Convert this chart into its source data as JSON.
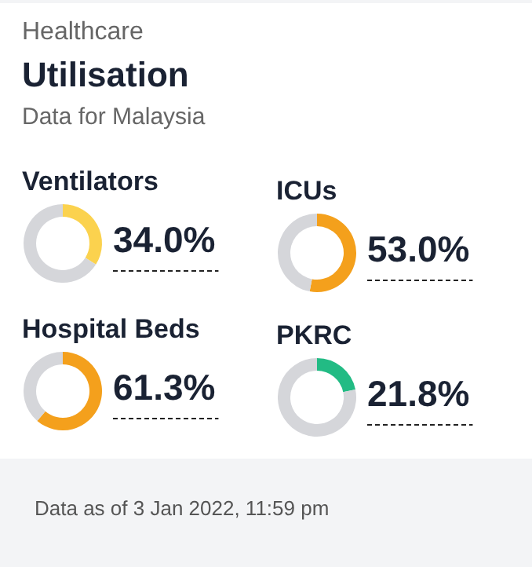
{
  "chart_data": [
    {
      "type": "other",
      "title": "Utilisation",
      "annotations": [
        "Healthcare",
        "Data for Malaysia",
        "Data as of 3 Jan 2022, 11:59 pm"
      ]
    },
    {
      "type": "donut",
      "title": "Ventilators",
      "categories": [
        null,
        null
      ],
      "values": [
        34.0,
        66.0
      ],
      "colors": [
        "#fbd24e",
        "#d5d6da"
      ],
      "value_labels": [
        "34.0%",
        null
      ]
    },
    {
      "type": "donut",
      "title": "ICUs",
      "categories": [
        null,
        null
      ],
      "values": [
        53.0,
        47.0
      ],
      "colors": [
        "#f4a01c",
        "#d5d6da"
      ],
      "value_labels": [
        "53.0%",
        null
      ]
    },
    {
      "type": "donut",
      "title": "Hospital Beds",
      "categories": [
        null,
        null
      ],
      "values": [
        61.3,
        38.7
      ],
      "colors": [
        "#f4a01c",
        "#d5d6da"
      ],
      "value_labels": [
        "61.3%",
        null
      ]
    },
    {
      "type": "donut",
      "title": "PKRC",
      "categories": [
        null,
        null
      ],
      "values": [
        21.8,
        78.2
      ],
      "colors": [
        "#22bb84",
        "#d5d6da"
      ],
      "value_labels": [
        "21.8%",
        null
      ]
    }
  ]
}
